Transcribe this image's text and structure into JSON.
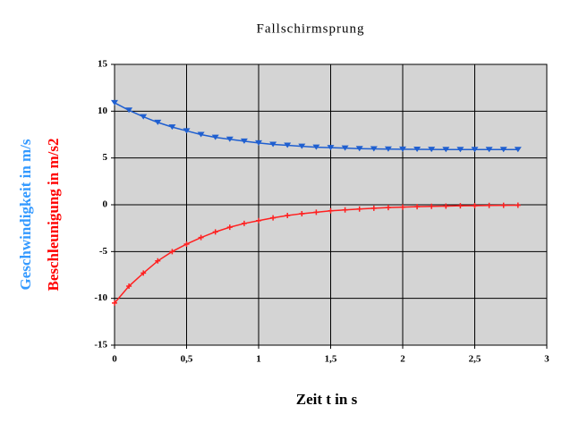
{
  "chart_data": {
    "type": "line",
    "title": "Fallschirmsprung",
    "x_label": "Zeit t in s",
    "y_labels": [
      {
        "text": "Geschwindigkeit in m/s",
        "color": "#3399ff"
      },
      {
        "text": "Beschleunigung in m/s2",
        "color": "#ff0000"
      }
    ],
    "x": [
      0,
      0.1,
      0.2,
      0.3,
      0.4,
      0.5,
      0.6,
      0.7,
      0.8,
      0.9,
      1.0,
      1.1,
      1.2,
      1.3,
      1.4,
      1.5,
      1.6,
      1.7,
      1.8,
      1.9,
      2.0,
      2.1,
      2.2,
      2.3,
      2.4,
      2.5,
      2.6,
      2.7,
      2.8
    ],
    "series": [
      {
        "name": "Geschwindigkeit",
        "color": "#1f5fd0",
        "marker": "triangle",
        "values": [
          10.9,
          10.1,
          9.4,
          8.8,
          8.3,
          7.9,
          7.5,
          7.2,
          7.0,
          6.8,
          6.6,
          6.45,
          6.35,
          6.25,
          6.15,
          6.1,
          6.05,
          6.0,
          5.97,
          5.95,
          5.93,
          5.92,
          5.91,
          5.9,
          5.9,
          5.9,
          5.9,
          5.9,
          5.9
        ]
      },
      {
        "name": "Beschleunigung",
        "color": "#ff2020",
        "marker": "cross",
        "values": [
          -10.5,
          -8.7,
          -7.3,
          -6.0,
          -5.0,
          -4.2,
          -3.5,
          -2.9,
          -2.4,
          -2.0,
          -1.7,
          -1.4,
          -1.15,
          -0.95,
          -0.8,
          -0.65,
          -0.55,
          -0.45,
          -0.37,
          -0.3,
          -0.25,
          -0.2,
          -0.17,
          -0.14,
          -0.11,
          -0.09,
          -0.07,
          -0.06,
          -0.05
        ]
      }
    ],
    "xlim": [
      0,
      3
    ],
    "xticks": [
      0,
      {
        "value": 0.5,
        "label": "0,5"
      },
      1,
      {
        "value": 1.5,
        "label": "1,5"
      },
      2,
      {
        "value": 2.5,
        "label": "2,5"
      },
      3
    ],
    "ylim": [
      -15,
      15
    ],
    "yticks": [
      -15,
      -10,
      -5,
      0,
      5,
      10,
      15
    ],
    "grid": true,
    "plot_background": "#d4d4d4"
  }
}
